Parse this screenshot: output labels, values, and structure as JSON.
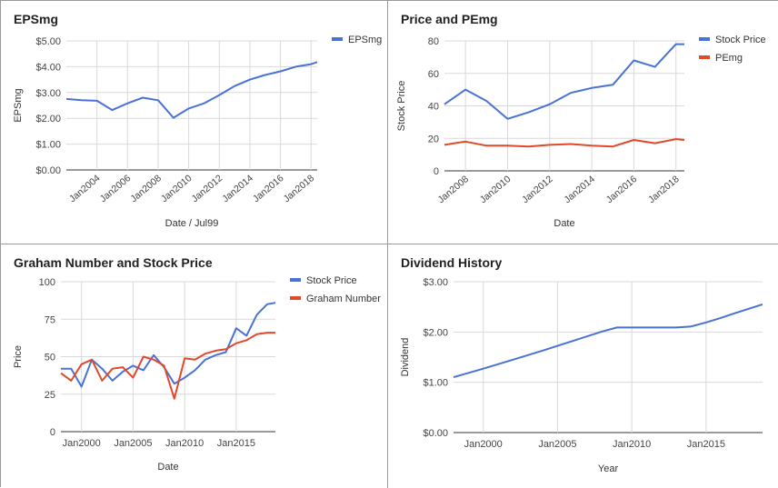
{
  "chart_data": [
    {
      "id": "eps",
      "type": "line",
      "title": "EPSmg",
      "xlabel": "Date / Jul99",
      "ylabel": "EPSmg",
      "x_type": "year",
      "xlim": [
        2002.0,
        2018.4
      ],
      "ylim": [
        0,
        5
      ],
      "yticks": [
        0,
        1,
        2,
        3,
        4,
        5
      ],
      "ytick_labels": [
        "$0.00",
        "$1.00",
        "$2.00",
        "$3.00",
        "$4.00",
        "$5.00"
      ],
      "xticks": [
        2004,
        2006,
        2008,
        2010,
        2012,
        2014,
        2016,
        2018
      ],
      "xtick_labels": [
        "Jan2004",
        "Jan2006",
        "Jan2008",
        "Jan2010",
        "Jan2012",
        "Jan2014",
        "Jan2016",
        "Jan2018"
      ],
      "xtick_rotate": true,
      "grid": true,
      "legend": "right",
      "series": [
        {
          "name": "EPSmg",
          "color": "#4a72d6",
          "x": [
            2002.0,
            2003.0,
            2004.0,
            2005.0,
            2006.0,
            2007.0,
            2008.0,
            2009.0,
            2010.0,
            2011.0,
            2012.0,
            2013.0,
            2014.0,
            2015.0,
            2016.0,
            2017.0,
            2018.0,
            2018.4
          ],
          "y": [
            2.75,
            2.7,
            2.68,
            2.32,
            2.58,
            2.8,
            2.7,
            2.02,
            2.38,
            2.58,
            2.9,
            3.25,
            3.5,
            3.68,
            3.82,
            4.0,
            4.1,
            4.18
          ]
        }
      ]
    },
    {
      "id": "pe",
      "type": "line",
      "title": "Price and PEmg",
      "xlabel": "Date",
      "ylabel": "Stock Price",
      "x_type": "year",
      "xlim": [
        2007.0,
        2018.4
      ],
      "ylim": [
        0,
        80
      ],
      "yticks": [
        0,
        20,
        40,
        60,
        80
      ],
      "ytick_labels": [
        "0",
        "20",
        "40",
        "60",
        "80"
      ],
      "xticks": [
        2008,
        2010,
        2012,
        2014,
        2016,
        2018
      ],
      "xtick_labels": [
        "Jan2008",
        "Jan2010",
        "Jan2012",
        "Jan2014",
        "Jan2016",
        "Jan2018"
      ],
      "xtick_rotate": true,
      "grid": true,
      "legend": "right",
      "series": [
        {
          "name": "Stock Price",
          "color": "#4a72d6",
          "x": [
            2007.0,
            2008.0,
            2009.0,
            2010.0,
            2011.0,
            2012.0,
            2013.0,
            2014.0,
            2015.0,
            2016.0,
            2017.0,
            2018.0,
            2018.4
          ],
          "y": [
            41,
            50,
            43,
            32,
            36,
            41,
            48,
            51,
            53,
            68,
            64,
            78,
            78
          ]
        },
        {
          "name": "PEmg",
          "color": "#e0492a",
          "x": [
            2007.0,
            2008.0,
            2009.0,
            2010.0,
            2011.0,
            2012.0,
            2013.0,
            2014.0,
            2015.0,
            2016.0,
            2017.0,
            2018.0,
            2018.4
          ],
          "y": [
            16,
            18,
            15.5,
            15.5,
            15,
            16,
            16.5,
            15.5,
            15,
            19,
            17,
            19.5,
            19
          ]
        }
      ]
    },
    {
      "id": "graham",
      "type": "line",
      "title": "Graham Number and Stock Price",
      "xlabel": "Date",
      "ylabel": "Price",
      "x_type": "year",
      "xlim": [
        1998.0,
        2018.8
      ],
      "ylim": [
        0,
        100
      ],
      "yticks": [
        0,
        25,
        50,
        75,
        100
      ],
      "ytick_labels": [
        "0",
        "25",
        "50",
        "75",
        "100"
      ],
      "xticks": [
        2000,
        2005,
        2010,
        2015
      ],
      "xtick_labels": [
        "Jan2000",
        "Jan2005",
        "Jan2010",
        "Jan2015"
      ],
      "xtick_rotate": false,
      "grid": true,
      "legend": "right",
      "series": [
        {
          "name": "Stock Price",
          "color": "#4a72d6",
          "x": [
            1998.0,
            1999.0,
            2000.0,
            2001.0,
            2002.0,
            2003.0,
            2004.0,
            2005.0,
            2006.0,
            2007.0,
            2008.0,
            2009.0,
            2010.0,
            2011.0,
            2012.0,
            2013.0,
            2014.0,
            2015.0,
            2016.0,
            2017.0,
            2018.0,
            2018.8
          ],
          "y": [
            42,
            42,
            30,
            48,
            42,
            34,
            40,
            44,
            41,
            51,
            43,
            32,
            36,
            41,
            48,
            51,
            53,
            69,
            64,
            78,
            85,
            86
          ]
        },
        {
          "name": "Graham Number",
          "color": "#e0492a",
          "x": [
            1998.0,
            1999.0,
            2000.0,
            2001.0,
            2002.0,
            2003.0,
            2004.0,
            2005.0,
            2006.0,
            2007.0,
            2008.0,
            2009.0,
            2010.0,
            2011.0,
            2012.0,
            2013.0,
            2014.0,
            2015.0,
            2016.0,
            2017.0,
            2018.0,
            2018.8
          ],
          "y": [
            39,
            34,
            45,
            48,
            34,
            42,
            43,
            36,
            50,
            48,
            44,
            22,
            49,
            48,
            52,
            54,
            55,
            59,
            61,
            65,
            66,
            66
          ]
        }
      ]
    },
    {
      "id": "dividend",
      "type": "line",
      "title": "Dividend History",
      "xlabel": "Year",
      "ylabel": "Dividend",
      "x_type": "year",
      "xlim": [
        1998.0,
        2018.8
      ],
      "ylim": [
        0,
        3
      ],
      "yticks": [
        0,
        1,
        2,
        3
      ],
      "ytick_labels": [
        "$0.00",
        "$1.00",
        "$2.00",
        "$3.00"
      ],
      "xticks": [
        2000,
        2005,
        2010,
        2015
      ],
      "xtick_labels": [
        "Jan2000",
        "Jan2005",
        "Jan2010",
        "Jan2015"
      ],
      "xtick_rotate": false,
      "grid": true,
      "legend": "none",
      "series": [
        {
          "name": "",
          "color": "#4a72d6",
          "x": [
            1998.0,
            2000.0,
            2002.0,
            2004.0,
            2006.0,
            2008.0,
            2009.0,
            2010.0,
            2011.0,
            2012.0,
            2013.0,
            2014.0,
            2015.0,
            2016.0,
            2017.0,
            2018.8
          ],
          "y": [
            1.1,
            1.27,
            1.45,
            1.63,
            1.82,
            2.01,
            2.09,
            2.09,
            2.09,
            2.09,
            2.09,
            2.11,
            2.19,
            2.28,
            2.38,
            2.55
          ]
        }
      ]
    }
  ]
}
